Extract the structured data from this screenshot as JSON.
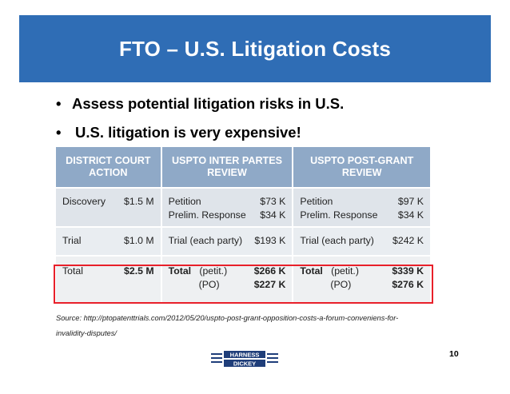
{
  "slide": {
    "title": "FTO – U.S. Litigation Costs",
    "bullets": [
      "Assess potential litigation risks in U.S.",
      "U.S. litigation is very expensive!"
    ],
    "bullet_char": "•",
    "table": {
      "headers": [
        "DISTRICT COURT ACTION",
        "USPTO INTER PARTES REVIEW",
        "USPTO POST-GRANT REVIEW"
      ],
      "rows": {
        "discovery": {
          "dc_label": "Discovery",
          "dc_value": "$1.5 M",
          "ipr_lines": [
            {
              "label": "Petition",
              "value": "$73 K"
            },
            {
              "label": "Prelim. Response",
              "value": "$34 K"
            }
          ],
          "pgr_lines": [
            {
              "label": "Petition",
              "value": "$97 K"
            },
            {
              "label": "Prelim. Response",
              "value": "$34 K"
            }
          ]
        },
        "trial": {
          "dc_label": "Trial",
          "dc_value": "$1.0 M",
          "ipr_label": "Trial (each party)",
          "ipr_value": "$193 K",
          "pgr_label": "Trial (each party)",
          "pgr_value": "$242 K"
        },
        "total": {
          "dc_label": "Total",
          "dc_value": "$2.5 M",
          "ipr": {
            "label": "Total",
            "petit": "(petit.)",
            "petit_value": "$266 K",
            "po": "(PO)",
            "po_value": "$227 K"
          },
          "pgr": {
            "label": "Total",
            "petit": "(petit.)",
            "petit_value": "$339 K",
            "po": "(PO)",
            "po_value": "$276 K"
          }
        }
      }
    },
    "source_line1": "Source:  http://ptopatenttrials.com/2012/05/20/uspto-post-grant-opposition-costs-a-forum-conveniens-for-",
    "source_line2": "invalidity-disputes/",
    "page_number": "10",
    "logo": {
      "line1": "HARNESS",
      "line2": "DICKEY",
      "color": "#1f3e7a"
    },
    "colors": {
      "title_bar": "#2f6db5",
      "table_header": "#8fa9c7",
      "highlight": "#e8202a"
    }
  }
}
